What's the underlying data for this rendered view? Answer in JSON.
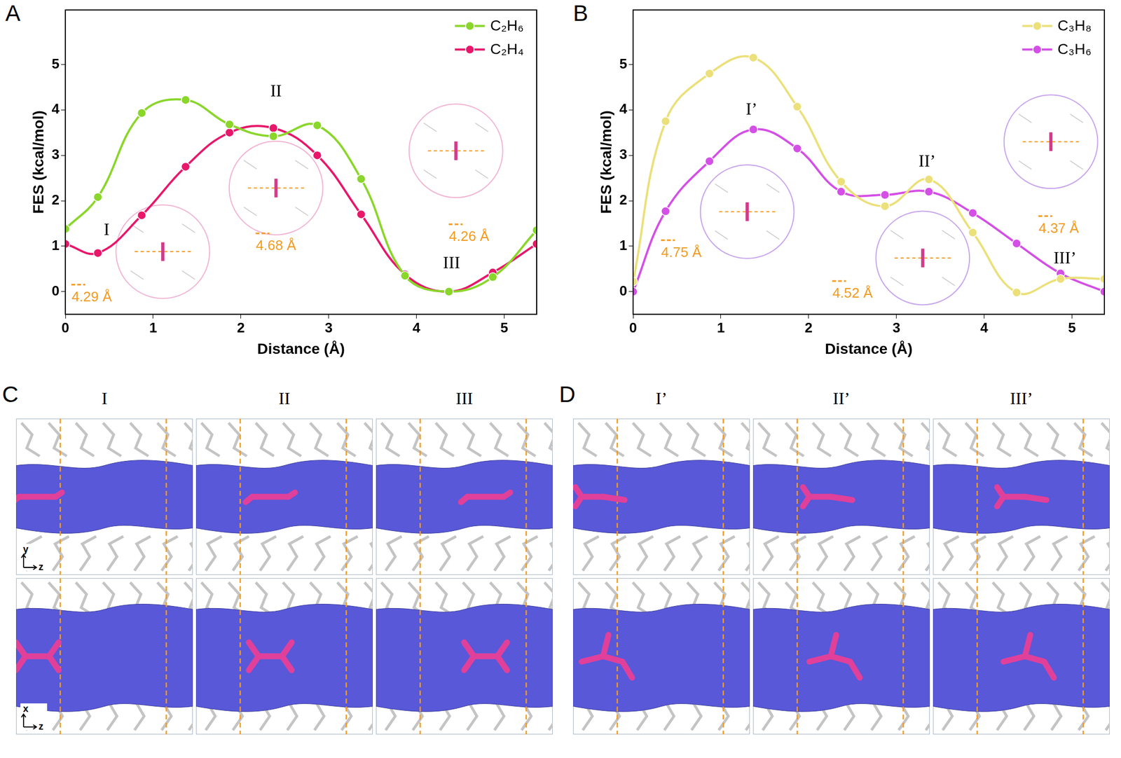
{
  "chart_data": [
    {
      "panel_label": "A",
      "type": "line",
      "x_label": "Distance (Å)",
      "y_label": "FES (kcal/mol)",
      "x": [
        0,
        0.37,
        0.87,
        1.37,
        1.87,
        2.37,
        2.87,
        3.37,
        3.87,
        4.37,
        4.87,
        5.37
      ],
      "xlim": [
        0,
        5.37
      ],
      "xticks": [
        0,
        1,
        2,
        3,
        4,
        5
      ],
      "ylim": [
        -0.5,
        6.2
      ],
      "yticks": [
        0,
        1,
        2,
        3,
        4,
        5
      ],
      "grid": false,
      "legend": "upper right",
      "marker": "circle",
      "series": [
        {
          "name": "C₂H₆",
          "color": "#8ad62a",
          "values": [
            1.38,
            2.08,
            3.93,
            4.22,
            3.68,
            3.42,
            3.66,
            2.48,
            0.35,
            0,
            0.32,
            1.35
          ]
        },
        {
          "name": "C₂H₄",
          "color": "#e8176a",
          "values": [
            1.05,
            0.85,
            1.68,
            2.75,
            3.5,
            3.6,
            3.0,
            1.7,
            0.38,
            0,
            0.42,
            1.05
          ]
        }
      ],
      "annotations": [
        "I",
        "II",
        "III"
      ],
      "distance_labels": [
        "4.29 Å",
        "4.68 Å",
        "4.26 Å"
      ]
    },
    {
      "panel_label": "B",
      "type": "line",
      "x_label": "Distance (Å)",
      "y_label": "FES (kcal/mol)",
      "x": [
        0,
        0.37,
        0.87,
        1.37,
        1.87,
        2.37,
        2.87,
        3.37,
        3.87,
        4.37,
        4.87,
        5.37
      ],
      "xlim": [
        0,
        5.37
      ],
      "xticks": [
        0,
        1,
        2,
        3,
        4,
        5
      ],
      "ylim": [
        -0.5,
        6.2
      ],
      "yticks": [
        0,
        1,
        2,
        3,
        4,
        5
      ],
      "grid": false,
      "legend": "upper right",
      "marker": "circle",
      "series": [
        {
          "name": "C₃H₈",
          "color": "#ebe07a",
          "values": [
            0.22,
            3.75,
            4.8,
            5.15,
            4.07,
            2.42,
            1.88,
            2.47,
            1.3,
            -0.02,
            0.28,
            0.28
          ]
        },
        {
          "name": "C₃H₆",
          "color": "#d44fe6",
          "values": [
            0,
            1.77,
            2.87,
            3.57,
            3.15,
            2.2,
            2.13,
            2.2,
            1.73,
            1.06,
            0.4,
            0
          ]
        }
      ],
      "annotations": [
        "I’",
        "II’",
        "III’"
      ],
      "distance_labels": [
        "4.75 Å",
        "4.52 Å",
        "4.37 Å"
      ]
    }
  ],
  "figure_panels": [
    {
      "label": "C",
      "columns": [
        "I",
        "II",
        "III"
      ],
      "axis_labels": [
        [
          "y",
          "z"
        ],
        [
          "x",
          "z"
        ]
      ]
    },
    {
      "label": "D",
      "columns": [
        "I’",
        "II’",
        "III’"
      ]
    }
  ]
}
